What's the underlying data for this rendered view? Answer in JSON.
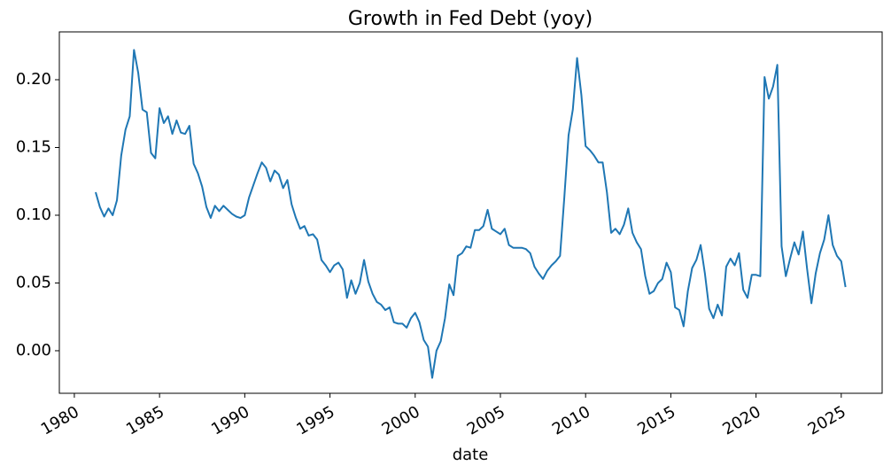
{
  "chart_data": {
    "type": "line",
    "title": "Growth in Fed Debt (yoy)",
    "x_label": "date",
    "color": "#1f77b4",
    "x": [
      1981.25,
      1981.5,
      1981.75,
      1982,
      1982.25,
      1982.5,
      1982.75,
      1983,
      1983.25,
      1983.5,
      1983.75,
      1984,
      1984.25,
      1984.5,
      1984.75,
      1985,
      1985.25,
      1985.5,
      1985.75,
      1986,
      1986.25,
      1986.5,
      1986.75,
      1987,
      1987.25,
      1987.5,
      1987.75,
      1988,
      1988.25,
      1988.5,
      1988.75,
      1989,
      1989.25,
      1989.5,
      1989.75,
      1990,
      1990.25,
      1990.5,
      1990.75,
      1991,
      1991.25,
      1991.5,
      1991.75,
      1992,
      1992.25,
      1992.5,
      1992.75,
      1993,
      1993.25,
      1993.5,
      1993.75,
      1994,
      1994.25,
      1994.5,
      1994.75,
      1995,
      1995.25,
      1995.5,
      1995.75,
      1996,
      1996.25,
      1996.5,
      1996.75,
      1997,
      1997.25,
      1997.5,
      1997.75,
      1998,
      1998.25,
      1998.5,
      1998.75,
      1999,
      1999.25,
      1999.5,
      1999.75,
      2000,
      2000.25,
      2000.5,
      2000.75,
      2001,
      2001.25,
      2001.5,
      2001.75,
      2002,
      2002.25,
      2002.5,
      2002.75,
      2003,
      2003.25,
      2003.5,
      2003.75,
      2004,
      2004.25,
      2004.5,
      2004.75,
      2005,
      2005.25,
      2005.5,
      2005.75,
      2006,
      2006.25,
      2006.5,
      2006.75,
      2007,
      2007.25,
      2007.5,
      2007.75,
      2008,
      2008.25,
      2008.5,
      2008.75,
      2009,
      2009.25,
      2009.5,
      2009.75,
      2010,
      2010.25,
      2010.5,
      2010.75,
      2011,
      2011.25,
      2011.5,
      2011.75,
      2012,
      2012.25,
      2012.5,
      2012.75,
      2013,
      2013.25,
      2013.5,
      2013.75,
      2014,
      2014.25,
      2014.5,
      2014.75,
      2015,
      2015.25,
      2015.5,
      2015.75,
      2016,
      2016.25,
      2016.5,
      2016.75,
      2017,
      2017.25,
      2017.5,
      2017.75,
      2018,
      2018.25,
      2018.5,
      2018.75,
      2019,
      2019.25,
      2019.5,
      2019.75,
      2020,
      2020.25,
      2020.5,
      2020.75,
      2021,
      2021.25,
      2021.5,
      2021.75,
      2022,
      2022.25,
      2022.5,
      2022.75,
      2023,
      2023.25,
      2023.5,
      2023.75,
      2024,
      2024.25,
      2024.5,
      2024.75,
      2025,
      2025.25
    ],
    "values": [
      0.117,
      0.106,
      0.099,
      0.105,
      0.1,
      0.111,
      0.144,
      0.163,
      0.173,
      0.222,
      0.205,
      0.178,
      0.176,
      0.146,
      0.142,
      0.179,
      0.168,
      0.173,
      0.16,
      0.17,
      0.161,
      0.16,
      0.166,
      0.138,
      0.131,
      0.121,
      0.106,
      0.098,
      0.107,
      0.103,
      0.107,
      0.104,
      0.101,
      0.099,
      0.098,
      0.1,
      0.113,
      0.122,
      0.131,
      0.139,
      0.135,
      0.125,
      0.133,
      0.13,
      0.12,
      0.126,
      0.108,
      0.098,
      0.09,
      0.092,
      0.085,
      0.086,
      0.082,
      0.067,
      0.063,
      0.058,
      0.063,
      0.065,
      0.06,
      0.039,
      0.052,
      0.042,
      0.05,
      0.067,
      0.051,
      0.042,
      0.036,
      0.034,
      0.03,
      0.032,
      0.021,
      0.02,
      0.02,
      0.017,
      0.024,
      0.028,
      0.021,
      0.008,
      0.003,
      -0.02,
      0.0,
      0.007,
      0.024,
      0.049,
      0.041,
      0.07,
      0.072,
      0.077,
      0.076,
      0.089,
      0.089,
      0.092,
      0.104,
      0.09,
      0.088,
      0.086,
      0.09,
      0.078,
      0.076,
      0.076,
      0.076,
      0.075,
      0.072,
      0.062,
      0.057,
      0.053,
      0.059,
      0.063,
      0.066,
      0.07,
      0.113,
      0.159,
      0.178,
      0.216,
      0.189,
      0.151,
      0.148,
      0.144,
      0.139,
      0.139,
      0.117,
      0.087,
      0.09,
      0.086,
      0.093,
      0.105,
      0.087,
      0.08,
      0.075,
      0.055,
      0.042,
      0.044,
      0.05,
      0.053,
      0.065,
      0.058,
      0.032,
      0.03,
      0.018,
      0.044,
      0.061,
      0.067,
      0.078,
      0.057,
      0.031,
      0.024,
      0.034,
      0.026,
      0.062,
      0.068,
      0.063,
      0.072,
      0.045,
      0.039,
      0.056,
      0.056,
      0.055,
      0.202,
      0.186,
      0.195,
      0.211,
      0.077,
      0.055,
      0.068,
      0.08,
      0.071,
      0.088,
      0.06,
      0.035,
      0.057,
      0.072,
      0.082,
      0.1,
      0.078,
      0.07,
      0.066,
      0.047
    ],
    "xlim": [
      1979.12,
      2027.4
    ],
    "ylim": [
      -0.0314,
      0.2353
    ],
    "xticks": [
      1980,
      1985,
      1990,
      1995,
      2000,
      2005,
      2010,
      2015,
      2020,
      2025
    ],
    "yticks": [
      {
        "value": 0,
        "label": "0.00"
      },
      {
        "value": 0.05,
        "label": "0.05"
      },
      {
        "value": 0.1,
        "label": "0.10"
      },
      {
        "value": 0.15,
        "label": "0.15"
      },
      {
        "value": 0.2,
        "label": "0.20"
      }
    ]
  }
}
